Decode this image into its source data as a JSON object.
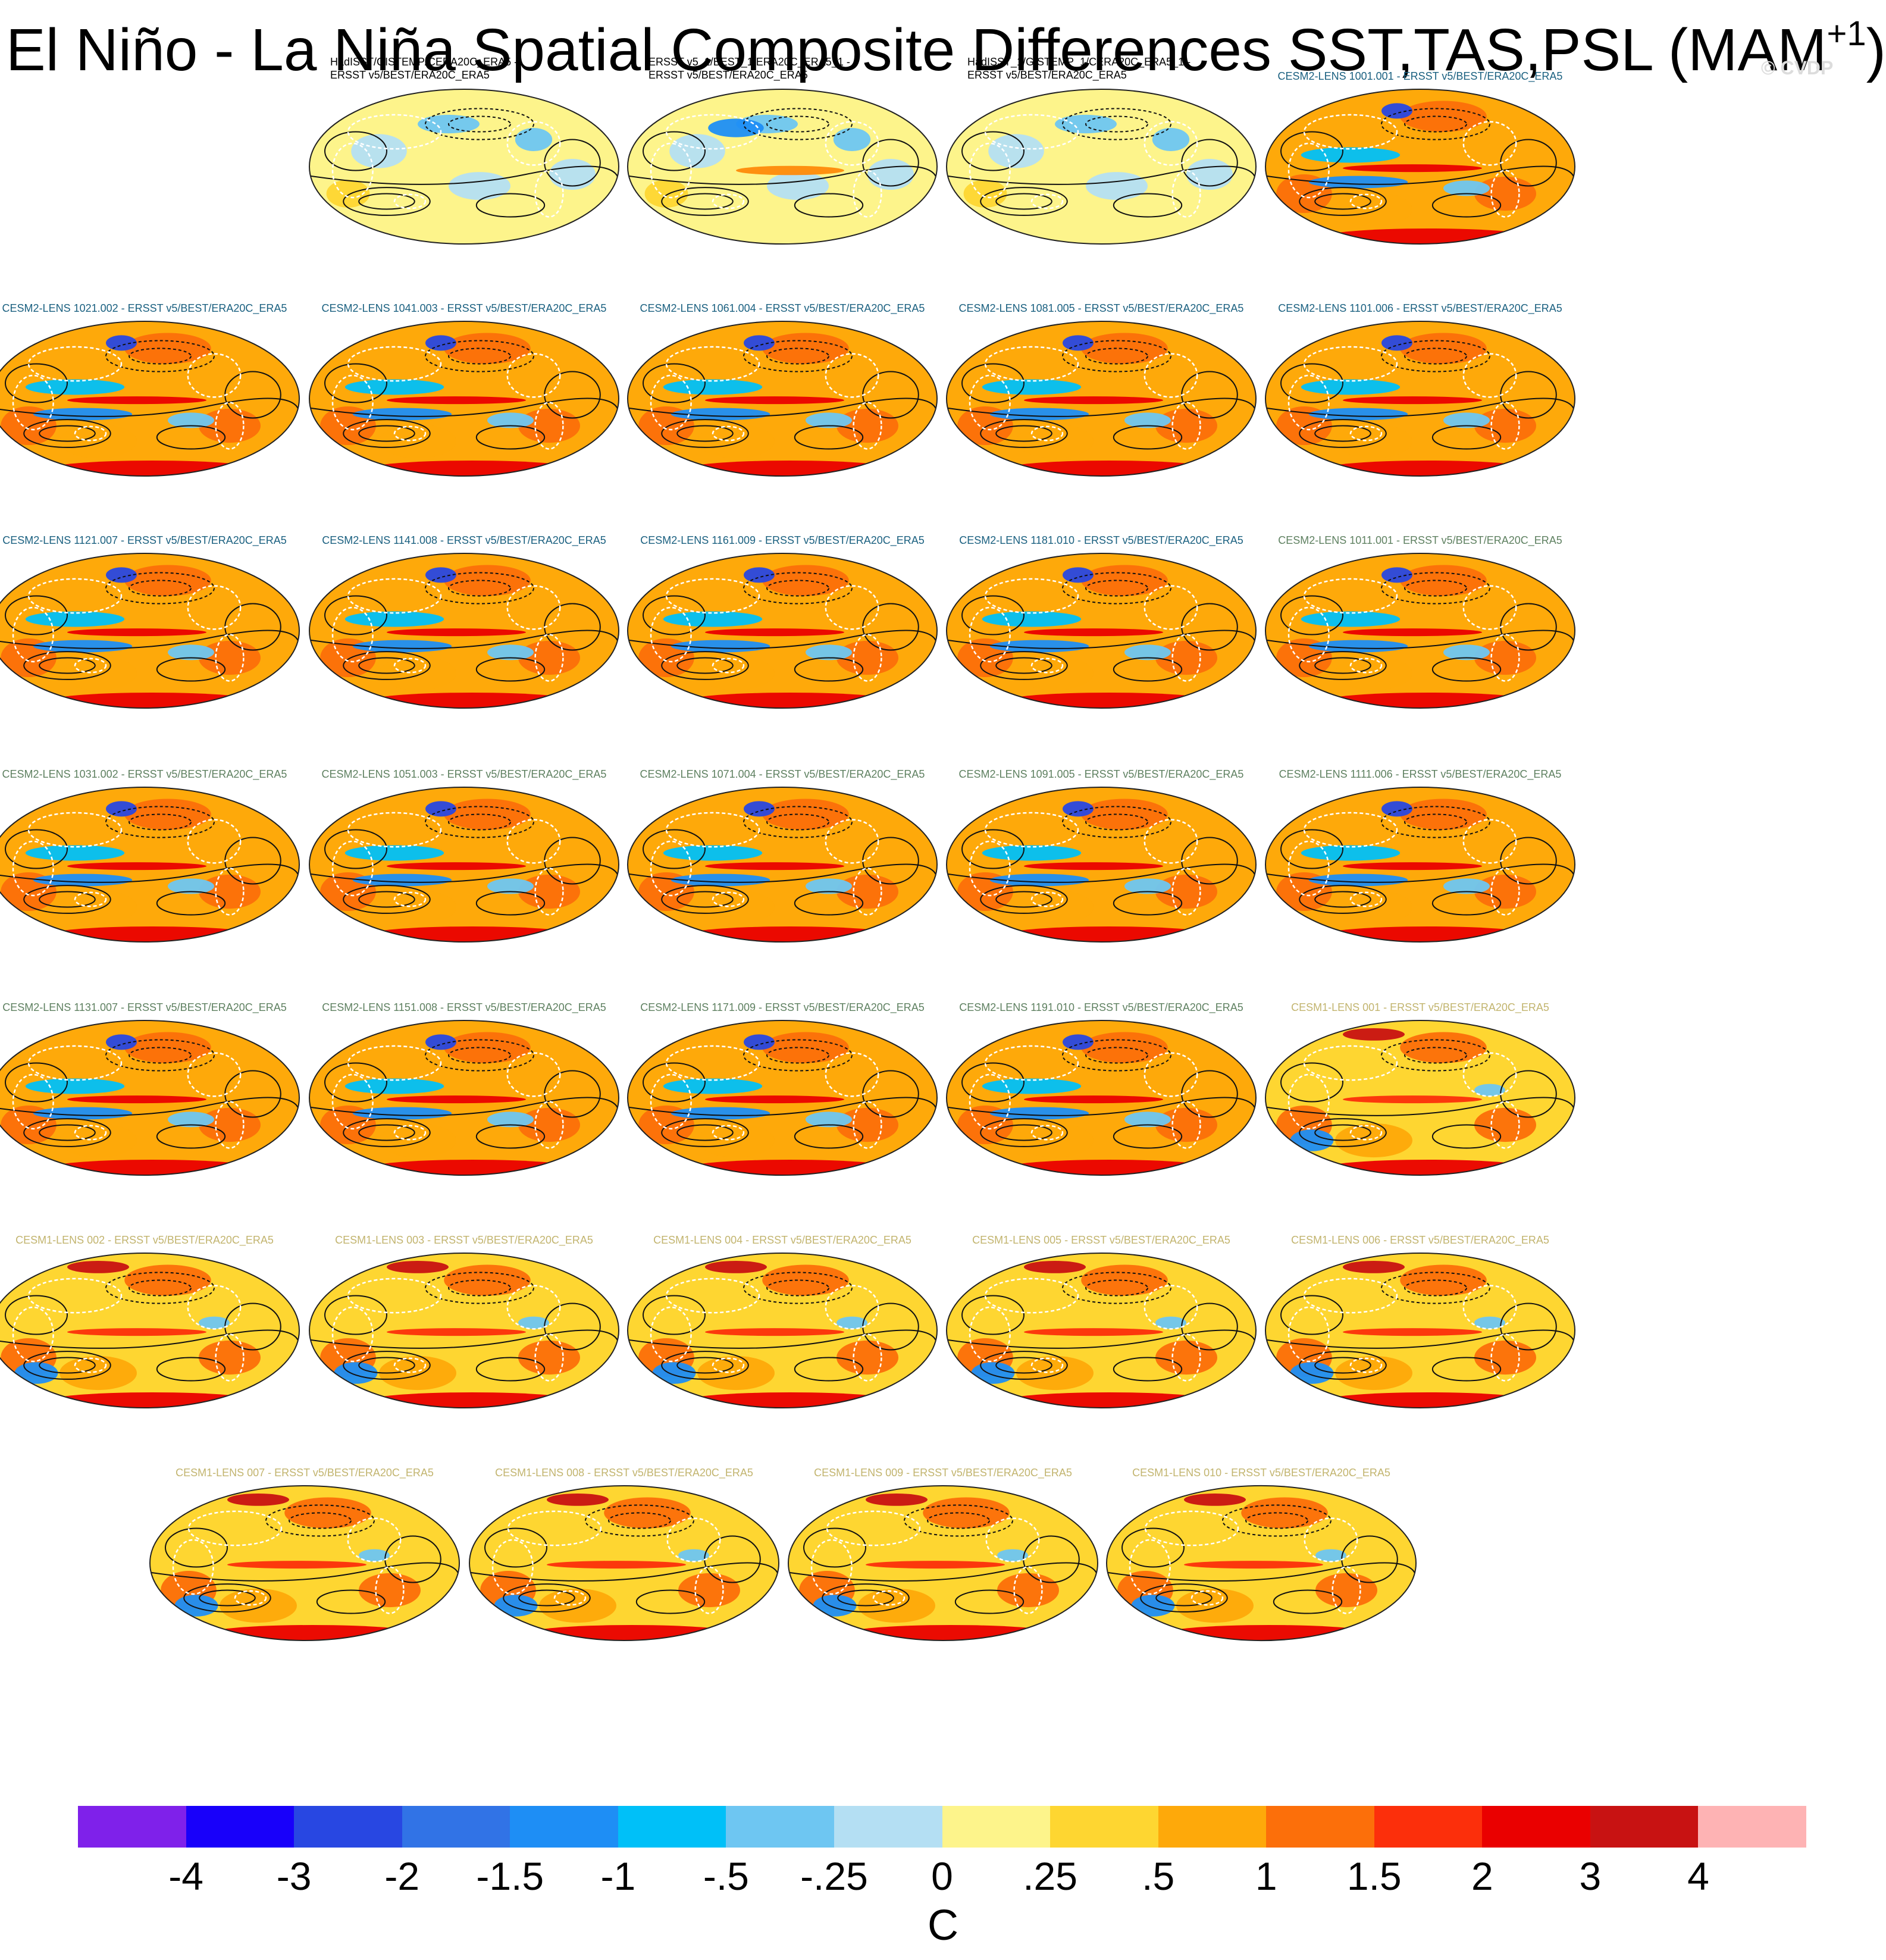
{
  "title": {
    "text": "El Niño - La Niña Spatial Composite Differences SST,TAS,PSL (MAM",
    "sup": "+1",
    "close": ")"
  },
  "watermark": "© CVDP",
  "chart_data": {
    "type": "heatmap",
    "title": "El Niño - La Niña Spatial Composite Differences SST,TAS,PSL (MAM+1)",
    "colorbar": {
      "unit": "C",
      "ticks": [
        "-4",
        "-3",
        "-2",
        "-1.5",
        "-1",
        "-.5",
        "-.25",
        "0",
        ".25",
        ".5",
        "1",
        "1.5",
        "2",
        "3",
        "4"
      ],
      "colors": [
        "#7f21ea",
        "#1800fa",
        "#2847e2",
        "#3173e6",
        "#1e8ef5",
        "#00c0f8",
        "#6ec6f2",
        "#b4dff3",
        "#fdf48b",
        "#fed631",
        "#fea90a",
        "#fc6f0a",
        "#fc2f0b",
        "#ea0000",
        "#c81212",
        "#feb3b4"
      ]
    },
    "panels": [
      {
        "title": "HadISST/GISTEMP/CERA20C_ERA5 -\nERSST v5/BEST/ERA20C_ERA5",
        "group": "obs",
        "title_color": "#000000",
        "pattern": "weak"
      },
      {
        "title": "ERSST v5_1/BEST_1/ERA20C_ERA5_1 -\nERSST v5/BEST/ERA20C_ERA5",
        "group": "obs",
        "title_color": "#000000",
        "pattern": "weak-el"
      },
      {
        "title": "HadISST_1/GISTEMP_1/CERA20C_ERA5_1 -\nERSST v5/BEST/ERA20C_ERA5",
        "group": "obs",
        "title_color": "#000000",
        "pattern": "weak"
      },
      {
        "title": "CESM2-LENS 1001.001 - ERSST v5/BEST/ERA20C_ERA5",
        "group": "cesm2a",
        "title_color": "#1a6080",
        "pattern": "strong"
      },
      {
        "title": "CESM2-LENS 1021.002 - ERSST v5/BEST/ERA20C_ERA5",
        "group": "cesm2a",
        "title_color": "#1a6080",
        "pattern": "strong"
      },
      {
        "title": "CESM2-LENS 1041.003 - ERSST v5/BEST/ERA20C_ERA5",
        "group": "cesm2a",
        "title_color": "#1a6080",
        "pattern": "strong"
      },
      {
        "title": "CESM2-LENS 1061.004 - ERSST v5/BEST/ERA20C_ERA5",
        "group": "cesm2a",
        "title_color": "#1a6080",
        "pattern": "strong"
      },
      {
        "title": "CESM2-LENS 1081.005 - ERSST v5/BEST/ERA20C_ERA5",
        "group": "cesm2a",
        "title_color": "#1a6080",
        "pattern": "strong"
      },
      {
        "title": "CESM2-LENS 1101.006 - ERSST v5/BEST/ERA20C_ERA5",
        "group": "cesm2a",
        "title_color": "#1a6080",
        "pattern": "strong"
      },
      {
        "title": "CESM2-LENS 1121.007 - ERSST v5/BEST/ERA20C_ERA5",
        "group": "cesm2a",
        "title_color": "#1a6080",
        "pattern": "strong"
      },
      {
        "title": "CESM2-LENS 1141.008 - ERSST v5/BEST/ERA20C_ERA5",
        "group": "cesm2a",
        "title_color": "#1a6080",
        "pattern": "strong"
      },
      {
        "title": "CESM2-LENS 1161.009 - ERSST v5/BEST/ERA20C_ERA5",
        "group": "cesm2a",
        "title_color": "#1a6080",
        "pattern": "strong"
      },
      {
        "title": "CESM2-LENS 1181.010 - ERSST v5/BEST/ERA20C_ERA5",
        "group": "cesm2a",
        "title_color": "#1a6080",
        "pattern": "strong"
      },
      {
        "title": "CESM2-LENS 1011.001 - ERSST v5/BEST/ERA20C_ERA5",
        "group": "cesm2b",
        "title_color": "#5e8060",
        "pattern": "strong"
      },
      {
        "title": "CESM2-LENS 1031.002 - ERSST v5/BEST/ERA20C_ERA5",
        "group": "cesm2b",
        "title_color": "#5e8060",
        "pattern": "strong"
      },
      {
        "title": "CESM2-LENS 1051.003 - ERSST v5/BEST/ERA20C_ERA5",
        "group": "cesm2b",
        "title_color": "#5e8060",
        "pattern": "strong"
      },
      {
        "title": "CESM2-LENS 1071.004 - ERSST v5/BEST/ERA20C_ERA5",
        "group": "cesm2b",
        "title_color": "#5e8060",
        "pattern": "strong"
      },
      {
        "title": "CESM2-LENS 1091.005 - ERSST v5/BEST/ERA20C_ERA5",
        "group": "cesm2b",
        "title_color": "#5e8060",
        "pattern": "strong"
      },
      {
        "title": "CESM2-LENS 1111.006 - ERSST v5/BEST/ERA20C_ERA5",
        "group": "cesm2b",
        "title_color": "#5e8060",
        "pattern": "strong"
      },
      {
        "title": "CESM2-LENS 1131.007 - ERSST v5/BEST/ERA20C_ERA5",
        "group": "cesm2b",
        "title_color": "#5e8060",
        "pattern": "strong"
      },
      {
        "title": "CESM2-LENS 1151.008 - ERSST v5/BEST/ERA20C_ERA5",
        "group": "cesm2b",
        "title_color": "#5e8060",
        "pattern": "strong"
      },
      {
        "title": "CESM2-LENS 1171.009 - ERSST v5/BEST/ERA20C_ERA5",
        "group": "cesm2b",
        "title_color": "#5e8060",
        "pattern": "strong"
      },
      {
        "title": "CESM2-LENS 1191.010 - ERSST v5/BEST/ERA20C_ERA5",
        "group": "cesm2b",
        "title_color": "#5e8060",
        "pattern": "strong"
      },
      {
        "title": "CESM1-LENS 001 - ERSST v5/BEST/ERA20C_ERA5",
        "group": "cesm1",
        "title_color": "#c2b46e",
        "pattern": "warm"
      },
      {
        "title": "CESM1-LENS 002 - ERSST v5/BEST/ERA20C_ERA5",
        "group": "cesm1",
        "title_color": "#c2b46e",
        "pattern": "warm"
      },
      {
        "title": "CESM1-LENS 003 - ERSST v5/BEST/ERA20C_ERA5",
        "group": "cesm1",
        "title_color": "#c2b46e",
        "pattern": "warm"
      },
      {
        "title": "CESM1-LENS 004 - ERSST v5/BEST/ERA20C_ERA5",
        "group": "cesm1",
        "title_color": "#c2b46e",
        "pattern": "warm"
      },
      {
        "title": "CESM1-LENS 005 - ERSST v5/BEST/ERA20C_ERA5",
        "group": "cesm1",
        "title_color": "#c2b46e",
        "pattern": "warm"
      },
      {
        "title": "CESM1-LENS 006 - ERSST v5/BEST/ERA20C_ERA5",
        "group": "cesm1",
        "title_color": "#c2b46e",
        "pattern": "warm"
      },
      {
        "title": "CESM1-LENS 007 - ERSST v5/BEST/ERA20C_ERA5",
        "group": "cesm1",
        "title_color": "#c2b46e",
        "pattern": "warm"
      },
      {
        "title": "CESM1-LENS 008 - ERSST v5/BEST/ERA20C_ERA5",
        "group": "cesm1",
        "title_color": "#c2b46e",
        "pattern": "warm"
      },
      {
        "title": "CESM1-LENS 009 - ERSST v5/BEST/ERA20C_ERA5",
        "group": "cesm1",
        "title_color": "#c2b46e",
        "pattern": "warm"
      },
      {
        "title": "CESM1-LENS 010 - ERSST v5/BEST/ERA20C_ERA5",
        "group": "cesm1",
        "title_color": "#c2b46e",
        "pattern": "warm"
      }
    ]
  }
}
